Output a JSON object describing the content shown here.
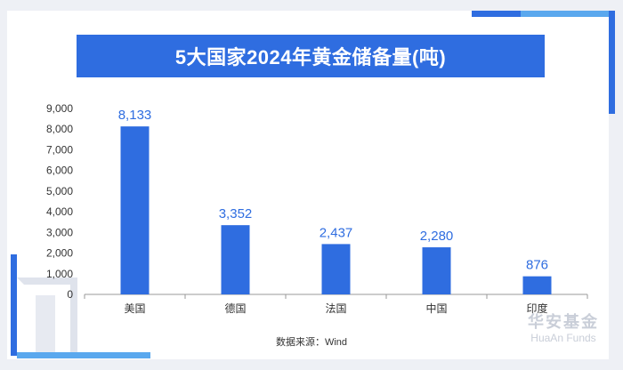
{
  "title": "5大国家2024年黄金储备量(吨)",
  "source_note": "数据来源：Wind",
  "logo": {
    "name_cn": "华安基金",
    "name_en": "HuaAn Funds"
  },
  "colors": {
    "accent": "#2f6de0",
    "bar": "#2f6de0",
    "label": "#2f6de0",
    "axis_text": "#333333"
  },
  "chart_data": {
    "type": "bar",
    "title": "5大国家2024年黄金储备量(吨)",
    "xlabel": "",
    "ylabel": "",
    "categories": [
      "美国",
      "德国",
      "法国",
      "中国",
      "印度"
    ],
    "values": [
      8133,
      3352,
      2437,
      2280,
      876
    ],
    "value_labels": [
      "8,133",
      "3,352",
      "2,437",
      "2,280",
      "876"
    ],
    "ylim": [
      0,
      9000
    ],
    "yticks": [
      0,
      1000,
      2000,
      3000,
      4000,
      5000,
      6000,
      7000,
      8000,
      9000
    ],
    "ytick_labels": [
      "0",
      "1,000",
      "2,000",
      "3,000",
      "4,000",
      "5,000",
      "6,000",
      "7,000",
      "8,000",
      "9,000"
    ],
    "grid": false,
    "legend": "none"
  }
}
